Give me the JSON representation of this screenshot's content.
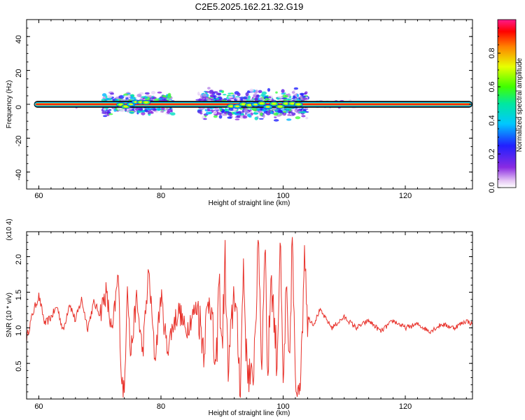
{
  "chart_data": [
    {
      "type": "heatmap",
      "title": "C2E5.2025.162.21.32.G19",
      "xlabel": "Height of straight line (km)",
      "ylabel": "Frequency (Hz)",
      "xlim": [
        58,
        131
      ],
      "ylim": [
        -50,
        50
      ],
      "xticks": [
        "60",
        "80",
        "100",
        "120"
      ],
      "yticks": [
        "40",
        "20",
        "0",
        "-20",
        "-40"
      ],
      "colorbar": {
        "label": "Normalized spectral amplitude",
        "range": [
          0,
          1
        ],
        "ticks": [
          "0.0",
          "0.2",
          "0.4",
          "0.6",
          "0.8"
        ]
      },
      "band": {
        "center_hz": 0,
        "halfwidth_hz": 2
      },
      "scatter_regions": [
        {
          "x": [
            66,
            68
          ],
          "spread_hz": 2
        },
        {
          "x": [
            70.5,
            82
          ],
          "spread_hz": 6
        },
        {
          "x": [
            86,
            104
          ],
          "spread_hz": 8
        },
        {
          "x": [
            104,
            112
          ],
          "spread_hz": 2
        }
      ]
    },
    {
      "type": "line",
      "xlabel": "Height of straight line (km)",
      "ylabel": "SNR (10 * v/v)",
      "y_multiplier": "(x10 4)",
      "xlim": [
        58,
        131
      ],
      "ylim": [
        0,
        2.35
      ],
      "xticks": [
        "60",
        "80",
        "100",
        "120"
      ],
      "yticks": [
        "0.5",
        "1.0",
        "1.5",
        "2.0"
      ],
      "color": "#e8312a",
      "x": [
        58,
        59,
        60,
        61,
        62,
        63,
        64,
        65,
        66,
        67,
        68,
        69,
        70,
        71,
        72,
        73,
        73.5,
        74,
        74.5,
        75,
        76,
        77,
        78,
        79,
        80,
        81,
        82,
        83,
        84,
        85,
        86,
        87,
        88,
        89,
        89.5,
        90,
        90.5,
        91,
        92,
        93,
        93.5,
        94,
        95,
        96,
        96.5,
        97,
        97.5,
        98,
        99,
        99.5,
        100,
        100.5,
        101,
        101.5,
        102,
        103,
        103.5,
        104,
        105,
        106,
        108,
        110,
        112,
        114,
        116,
        118,
        120,
        122,
        124,
        126,
        128,
        130,
        131
      ],
      "y": [
        0.85,
        1.2,
        1.45,
        1.05,
        1.15,
        1.3,
        0.95,
        1.35,
        1.1,
        1.4,
        1.0,
        1.35,
        1.2,
        1.5,
        0.9,
        1.75,
        0.35,
        0.05,
        1.7,
        0.6,
        1.4,
        0.65,
        1.8,
        0.55,
        1.45,
        0.7,
        1.05,
        1.25,
        0.95,
        1.15,
        1.3,
        0.75,
        1.55,
        0.25,
        1.7,
        0.7,
        1.95,
        0.3,
        1.6,
        0.2,
        1.9,
        0.55,
        0.15,
        2.2,
        0.4,
        2.35,
        0.25,
        1.8,
        0.5,
        2.25,
        0.1,
        1.5,
        0.35,
        2.3,
        0.1,
        0.5,
        2.25,
        1.15,
        1.05,
        1.25,
        1.0,
        1.15,
        1.0,
        1.1,
        0.95,
        1.1,
        1.0,
        1.05,
        0.95,
        1.05,
        1.0,
        1.1,
        1.05
      ]
    }
  ]
}
